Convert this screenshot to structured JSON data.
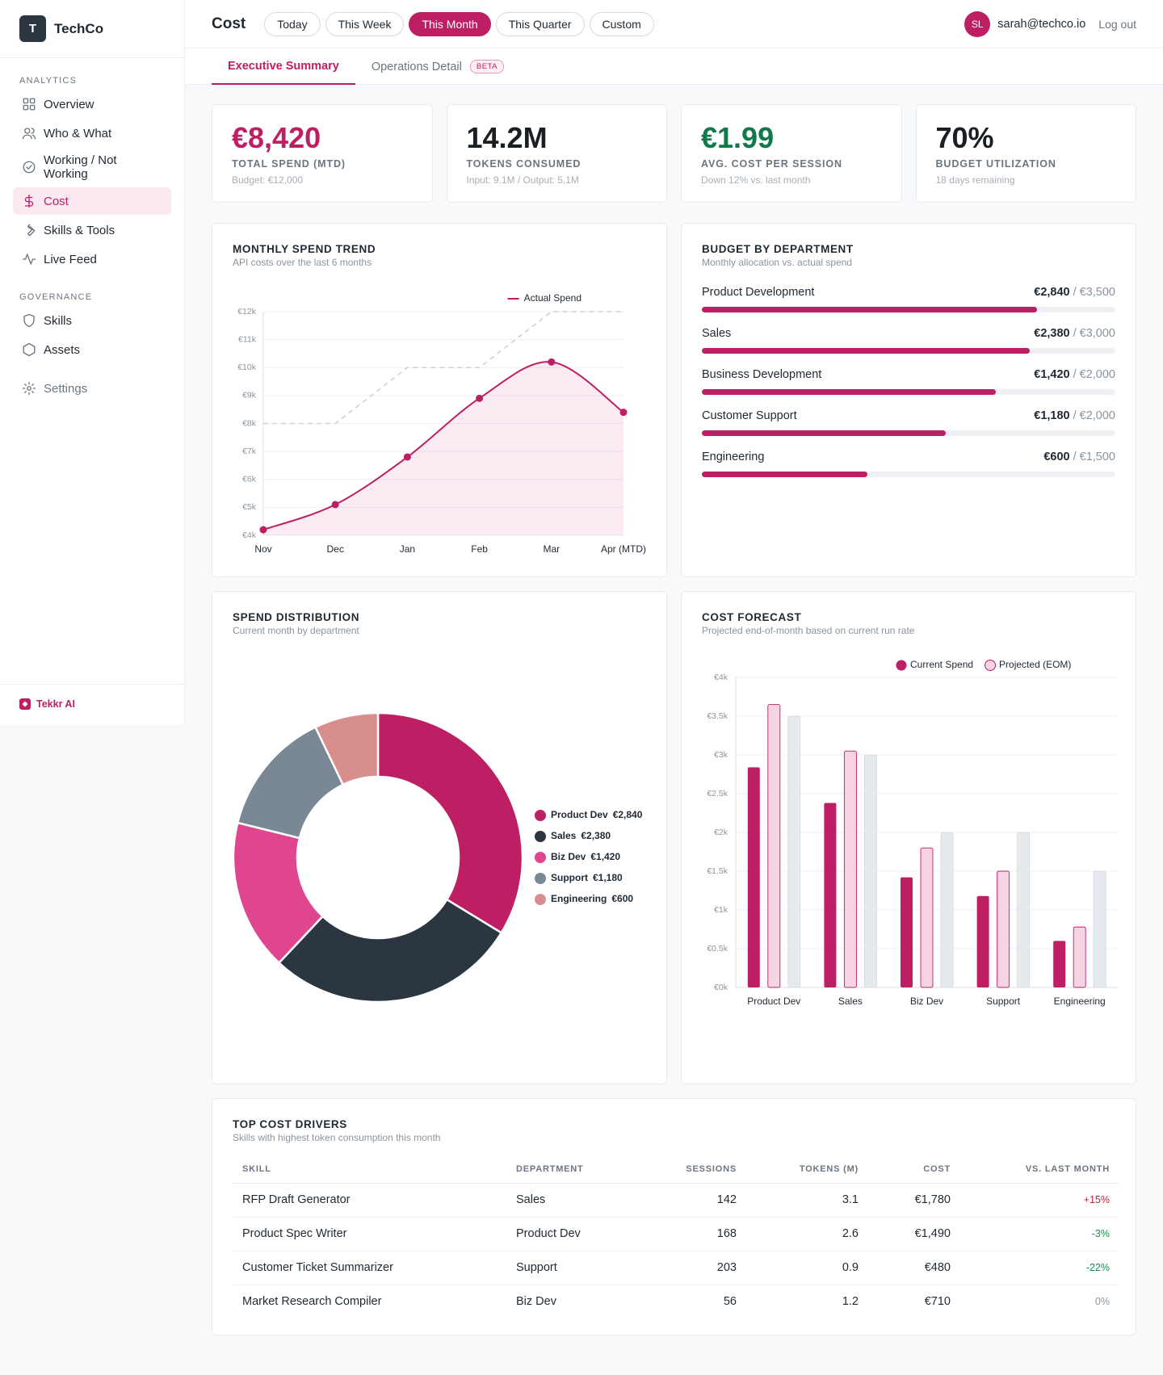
{
  "sidebar": {
    "logo": "T",
    "brand": "TechCo",
    "sections": [
      {
        "title": "ANALYTICS",
        "items": [
          {
            "label": "Overview"
          },
          {
            "label": "Who & What"
          },
          {
            "label": "Working / Not Working"
          },
          {
            "label": "Cost",
            "active": true
          },
          {
            "label": "Skills & Tools"
          },
          {
            "label": "Live Feed"
          }
        ]
      },
      {
        "title": "GOVERNANCE",
        "items": [
          {
            "label": "Skills"
          },
          {
            "label": "Assets"
          }
        ]
      }
    ],
    "settings": "Settings",
    "footer": "Tekkr AI"
  },
  "header": {
    "title": "Cost",
    "ranges": [
      {
        "label": "Today"
      },
      {
        "label": "This Week"
      },
      {
        "label": "This Month",
        "active": true
      },
      {
        "label": "This Quarter"
      },
      {
        "label": "Custom"
      }
    ],
    "user": {
      "initials": "SL",
      "email": "sarah@techco.io"
    },
    "logout": "Log out"
  },
  "tabs": [
    {
      "label": "Executive Summary",
      "active": true
    },
    {
      "label": "Operations Detail",
      "badge": "BETA"
    }
  ],
  "kpis": [
    {
      "value": "€8,420",
      "label": "TOTAL SPEND (MTD)",
      "note": "Budget: €12,000",
      "color": "#be1e64"
    },
    {
      "value": "14.2M",
      "label": "TOKENS CONSUMED",
      "note": "Input: 9.1M / Output: 5.1M",
      "color": "#1a1f24"
    },
    {
      "value": "€1.99",
      "label": "AVG. COST PER SESSION",
      "note": "Down 12% vs. last month",
      "color": "#12794a"
    },
    {
      "value": "70%",
      "label": "BUDGET UTILIZATION",
      "note": "18 days remaining",
      "color": "#1a1f24"
    }
  ],
  "chart_data": [
    {
      "type": "line",
      "title": "MONTHLY SPEND TREND",
      "subtitle": "API costs over the last 6 months",
      "categories": [
        "Nov",
        "Dec",
        "Jan",
        "Feb",
        "Mar",
        "Apr (MTD)"
      ],
      "series": [
        {
          "name": "Actual Spend",
          "color": "#be1e64",
          "values": [
            4.2,
            5.1,
            6.8,
            8.9,
            10.2,
            8.4
          ],
          "area": true,
          "markers": true,
          "smooth": true
        },
        {
          "color": "#c9d3dc",
          "values": [
            8,
            8,
            10,
            10,
            12,
            12
          ],
          "dashed": true
        }
      ],
      "ylim": [
        4,
        12
      ],
      "yticks": [
        {
          "value": 4,
          "label": "€4k"
        },
        {
          "value": 5,
          "label": "€5k"
        },
        {
          "value": 6,
          "label": "€6k"
        },
        {
          "value": 7,
          "label": "€7k"
        },
        {
          "value": 8,
          "label": "€8k"
        },
        {
          "value": 9,
          "label": "€9k"
        },
        {
          "value": 10,
          "label": "€10k"
        },
        {
          "value": 11,
          "label": "€11k"
        },
        {
          "value": 12,
          "label": "€12k"
        }
      ],
      "grid": true,
      "legend": "top-right"
    },
    {
      "type": "progress",
      "title": "BUDGET BY DEPARTMENT",
      "subtitle": "Monthly allocation vs. actual spend",
      "categories": [
        "Product Development",
        "Sales",
        "Business Development",
        "Customer Support",
        "Engineering"
      ],
      "values": [
        2840,
        2380,
        1420,
        1180,
        600
      ],
      "value_labels": [
        "€2,840",
        "€2,380",
        "€1,420",
        "€1,180",
        "€600"
      ],
      "targets": [
        3500,
        3000,
        2000,
        2000,
        1500
      ],
      "target_labels": [
        "€3,500",
        "€3,000",
        "€2,000",
        "€2,000",
        "€1,500"
      ],
      "separator": "/",
      "color": "#be1e64"
    },
    {
      "type": "pie",
      "donut": true,
      "title": "SPEND DISTRIBUTION",
      "subtitle": "Current month by department",
      "categories": [
        "Product Dev",
        "Sales",
        "Biz Dev",
        "Support",
        "Engineering"
      ],
      "values": [
        2840,
        2380,
        1420,
        1180,
        600
      ],
      "value_labels": [
        "€2,840",
        "€2,380",
        "€1,420",
        "€1,180",
        "€600"
      ],
      "colors": [
        "#be1e64",
        "#2b3640",
        "#e0468f",
        "#7a8794",
        "#d98e8e"
      ],
      "legend": "right"
    },
    {
      "type": "grouped-bar",
      "title": "COST FORECAST",
      "subtitle": "Projected end-of-month based on current run rate",
      "categories": [
        "Product Dev",
        "Sales",
        "Biz Dev",
        "Support",
        "Engineering"
      ],
      "series": [
        {
          "name": "Current Spend",
          "color": "#be1e64",
          "values": [
            2.84,
            2.38,
            1.42,
            1.18,
            0.6
          ]
        },
        {
          "name": "Projected (EOM)",
          "color": "#f6d3e3",
          "stroke": "#be1e64",
          "values": [
            3.65,
            3.05,
            1.8,
            1.5,
            0.78
          ]
        },
        {
          "color": "#e6eaee",
          "stroke": "#d5dbe1",
          "values": [
            3.5,
            3,
            2,
            2,
            1.5
          ]
        }
      ],
      "ylim": [
        0,
        4
      ],
      "yticks": [
        {
          "value": 0,
          "label": "€0k"
        },
        {
          "value": 0.5,
          "label": "€0.5k"
        },
        {
          "value": 1,
          "label": "€1k"
        },
        {
          "value": 1.5,
          "label": "€1.5k"
        },
        {
          "value": 2,
          "label": "€2k"
        },
        {
          "value": 2.5,
          "label": "€2.5k"
        },
        {
          "value": 3,
          "label": "€3k"
        },
        {
          "value": 3.5,
          "label": "€3.5k"
        },
        {
          "value": 4,
          "label": "€4k"
        }
      ],
      "grid": true,
      "legend": "top-right"
    }
  ],
  "table": {
    "title": "TOP COST DRIVERS",
    "subtitle": "Skills with highest token consumption this month",
    "columns": [
      "SKILL",
      "DEPARTMENT",
      "SESSIONS",
      "TOKENS (M)",
      "COST",
      "VS. LAST MONTH"
    ],
    "rows": [
      [
        "RFP Draft Generator",
        "Sales",
        142,
        3.1,
        "€1,780",
        "+15%"
      ],
      [
        "Product Spec Writer",
        "Product Dev",
        168,
        2.6,
        "€1,490",
        "-3%"
      ],
      [
        "Customer Ticket Summarizer",
        "Support",
        203,
        0.9,
        "€480",
        "-22%"
      ],
      [
        "Market Research Compiler",
        "Biz Dev",
        56,
        1.2,
        "€710",
        "0%"
      ]
    ]
  }
}
